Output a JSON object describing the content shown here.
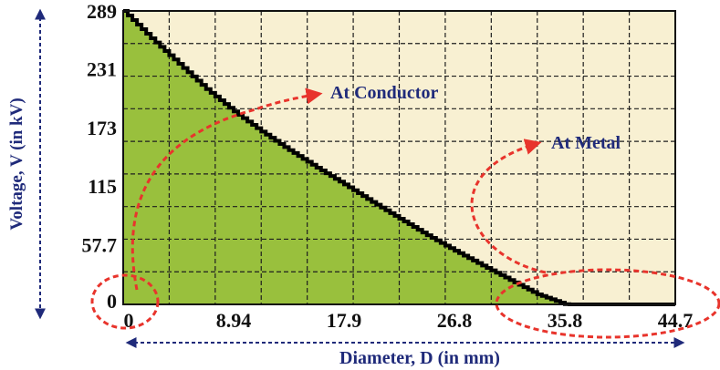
{
  "chart_data": {
    "type": "area",
    "title": "",
    "xlabel": "Diameter, D (in mm)",
    "ylabel": "Voltage, V (in kV)",
    "xlim": [
      0,
      44.7
    ],
    "ylim": [
      0,
      289
    ],
    "x_ticks": [
      "0",
      "8.94",
      "17.9",
      "26.8",
      "35.8",
      "44.7"
    ],
    "y_ticks": [
      "0",
      "57.7",
      "115",
      "173",
      "231",
      "289"
    ],
    "grid": true,
    "series": [
      {
        "x": [
          0,
          2.24,
          4.47,
          6.71,
          8.94,
          11.2,
          13.4,
          15.6,
          17.9,
          20.1,
          22.4,
          24.6,
          26.8,
          29.1,
          31.3,
          33.5,
          35.8,
          38.0,
          40.2,
          42.5,
          44.7
        ],
        "y": [
          289,
          262,
          237,
          212,
          190,
          170,
          152,
          135,
          118,
          101,
          84,
          68,
          53,
          38,
          24,
          10,
          0,
          0,
          0,
          0,
          0
        ]
      }
    ],
    "annotations": [
      {
        "text": "At Conductor",
        "x": 0,
        "y": 0
      },
      {
        "text": "At Metal",
        "x": 35.8,
        "y": 0
      }
    ],
    "colors": {
      "fill_under": "#99c03d",
      "plot_background": "#f8f0d2",
      "curve": "#000000",
      "grid": "#1e1e1e",
      "axis_label": "#1f2a7a",
      "annotation_text": "#1f2a7a",
      "annotation_arrow": "#e8342c"
    }
  }
}
